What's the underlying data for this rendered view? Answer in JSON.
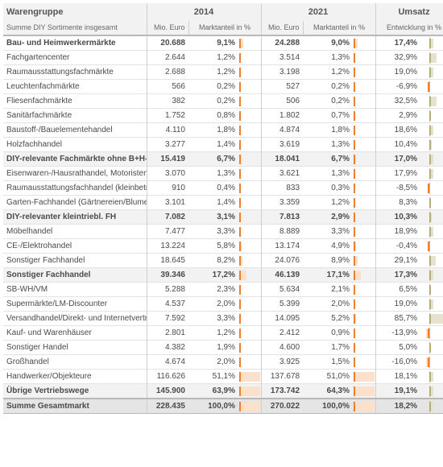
{
  "colors": {
    "orange": "#ee7f2f",
    "orange_light": "#fbe0cb",
    "olive": "#b5ad7a",
    "olive_light": "#e6e2cd",
    "header_bg": "#f2f2f2",
    "shade_bg": "#f2f2f2",
    "total_bg": "#e5e5e5",
    "border": "#cfcfcf",
    "row_border": "#e3e3e3",
    "text": "#4a4a4a"
  },
  "header": {
    "group_col": "Warengruppe",
    "group_sub": "Summe DIY Sortimente insgesamt",
    "y2014": "2014",
    "y2021": "2021",
    "umsatz": "Umsatz",
    "euro": "Mio. Euro",
    "share": "Marktanteil in %",
    "dev": "Entwicklung in %"
  },
  "share_bar_max": 100,
  "dev_bar_range": 90,
  "rows": [
    {
      "name": "Bau- und Heimwerkermärkte",
      "euro14": "20.688",
      "share14": "9,1%",
      "s14": 9.1,
      "euro21": "24.288",
      "share21": "9,0%",
      "s21": 9.0,
      "dev": "17,4%",
      "d": 17.4,
      "style": "bold"
    },
    {
      "name": "Fachgartencenter",
      "euro14": "2.644",
      "share14": "1,2%",
      "s14": 1.2,
      "euro21": "3.514",
      "share21": "1,3%",
      "s21": 1.3,
      "dev": "32,9%",
      "d": 32.9
    },
    {
      "name": "Raumausstattungsfachmärkte",
      "euro14": "2.688",
      "share14": "1,2%",
      "s14": 1.2,
      "euro21": "3.198",
      "share21": "1,2%",
      "s21": 1.2,
      "dev": "19,0%",
      "d": 19.0
    },
    {
      "name": "Leuchtenfachmärkte",
      "euro14": "566",
      "share14": "0,2%",
      "s14": 0.2,
      "euro21": "527",
      "share21": "0,2%",
      "s21": 0.2,
      "dev": "-6,9%",
      "d": -6.9
    },
    {
      "name": "Fliesenfachmärkte",
      "euro14": "382",
      "share14": "0,2%",
      "s14": 0.2,
      "euro21": "506",
      "share21": "0,2%",
      "s21": 0.2,
      "dev": "32,5%",
      "d": 32.5
    },
    {
      "name": "Sanitärfachmärkte",
      "euro14": "1.752",
      "share14": "0,8%",
      "s14": 0.8,
      "euro21": "1.802",
      "share21": "0,7%",
      "s21": 0.7,
      "dev": "2,9%",
      "d": 2.9
    },
    {
      "name": "Baustoff-/Bauelementehandel",
      "euro14": "4.110",
      "share14": "1,8%",
      "s14": 1.8,
      "euro21": "4.874",
      "share21": "1,8%",
      "s21": 1.8,
      "dev": "18,6%",
      "d": 18.6
    },
    {
      "name": "Holzfachhandel",
      "euro14": "3.277",
      "share14": "1,4%",
      "s14": 1.4,
      "euro21": "3.619",
      "share21": "1,3%",
      "s21": 1.3,
      "dev": "10,4%",
      "d": 10.4
    },
    {
      "name": "DIY-relevante Fachmärkte ohne B+H-Märkte",
      "euro14": "15.419",
      "share14": "6,7%",
      "s14": 6.7,
      "euro21": "18.041",
      "share21": "6,7%",
      "s21": 6.7,
      "dev": "17,0%",
      "d": 17.0,
      "style": "bold shade"
    },
    {
      "name": "Eisenwaren-/Hausrathandel, Motoristen",
      "euro14": "3.070",
      "share14": "1,3%",
      "s14": 1.3,
      "euro21": "3.621",
      "share21": "1,3%",
      "s21": 1.3,
      "dev": "17,9%",
      "d": 17.9
    },
    {
      "name": "Raumausstattungsfachhandel (kleinbetrieblich)",
      "euro14": "910",
      "share14": "0,4%",
      "s14": 0.4,
      "euro21": "833",
      "share21": "0,3%",
      "s21": 0.3,
      "dev": "-8,5%",
      "d": -8.5
    },
    {
      "name": "Garten-Fachhandel (Gärtnereien/Blumenfachhandel)",
      "euro14": "3.101",
      "share14": "1,4%",
      "s14": 1.4,
      "euro21": "3.359",
      "share21": "1,2%",
      "s21": 1.2,
      "dev": "8,3%",
      "d": 8.3
    },
    {
      "name": "DIY-relevanter kleintriebl. FH",
      "euro14": "7.082",
      "share14": "3,1%",
      "s14": 3.1,
      "euro21": "7.813",
      "share21": "2,9%",
      "s21": 2.9,
      "dev": "10,3%",
      "d": 10.3,
      "style": "bold shade"
    },
    {
      "name": "Möbelhandel",
      "euro14": "7.477",
      "share14": "3,3%",
      "s14": 3.3,
      "euro21": "8.889",
      "share21": "3,3%",
      "s21": 3.3,
      "dev": "18,9%",
      "d": 18.9
    },
    {
      "name": "CE-/Elektrohandel",
      "euro14": "13.224",
      "share14": "5,8%",
      "s14": 5.8,
      "euro21": "13.174",
      "share21": "4,9%",
      "s21": 4.9,
      "dev": "-0,4%",
      "d": -0.4
    },
    {
      "name": "Sonstiger Fachhandel",
      "euro14": "18.645",
      "share14": "8,2%",
      "s14": 8.2,
      "euro21": "24.076",
      "share21": "8,9%",
      "s21": 8.9,
      "dev": "29,1%",
      "d": 29.1
    },
    {
      "name": "Sonstiger Fachhandel",
      "euro14": "39.346",
      "share14": "17,2%",
      "s14": 17.2,
      "euro21": "46.139",
      "share21": "17,1%",
      "s21": 17.1,
      "dev": "17,3%",
      "d": 17.3,
      "style": "bold shade"
    },
    {
      "name": "SB-WH/VM",
      "euro14": "5.288",
      "share14": "2,3%",
      "s14": 2.3,
      "euro21": "5.634",
      "share21": "2,1%",
      "s21": 2.1,
      "dev": "6,5%",
      "d": 6.5
    },
    {
      "name": "Supermärkte/LM-Discounter",
      "euro14": "4.537",
      "share14": "2,0%",
      "s14": 2.0,
      "euro21": "5.399",
      "share21": "2,0%",
      "s21": 2.0,
      "dev": "19,0%",
      "d": 19.0
    },
    {
      "name": "Versandhandel/Direkt- und Internetvertrieb",
      "euro14": "7.592",
      "share14": "3,3%",
      "s14": 3.3,
      "euro21": "14.095",
      "share21": "5,2%",
      "s21": 5.2,
      "dev": "85,7%",
      "d": 85.7
    },
    {
      "name": "Kauf- und Warenhäuser",
      "euro14": "2.801",
      "share14": "1,2%",
      "s14": 1.2,
      "euro21": "2.412",
      "share21": "0,9%",
      "s21": 0.9,
      "dev": "-13,9%",
      "d": -13.9
    },
    {
      "name": "Sonstiger Handel",
      "euro14": "4.382",
      "share14": "1,9%",
      "s14": 1.9,
      "euro21": "4.600",
      "share21": "1,7%",
      "s21": 1.7,
      "dev": "5,0%",
      "d": 5.0
    },
    {
      "name": "Großhandel",
      "euro14": "4.674",
      "share14": "2,0%",
      "s14": 2.0,
      "euro21": "3.925",
      "share21": "1,5%",
      "s21": 1.5,
      "dev": "-16,0%",
      "d": -16.0
    },
    {
      "name": "Handwerker/Objekteure",
      "euro14": "116.626",
      "share14": "51,1%",
      "s14": 51.1,
      "euro21": "137.678",
      "share21": "51,0%",
      "s21": 51.0,
      "dev": "18,1%",
      "d": 18.1
    },
    {
      "name": "Übrige Vertriebswege",
      "euro14": "145.900",
      "share14": "63,9%",
      "s14": 63.9,
      "euro21": "173.742",
      "share21": "64,3%",
      "s21": 64.3,
      "dev": "19,1%",
      "d": 19.1,
      "style": "bold shade"
    },
    {
      "name": "Summe Gesamtmarkt",
      "euro14": "228.435",
      "share14": "100,0%",
      "s14": 100.0,
      "euro21": "270.022",
      "share21": "100,0%",
      "s21": 100.0,
      "dev": "18,2%",
      "d": 18.2,
      "style": "total"
    }
  ]
}
